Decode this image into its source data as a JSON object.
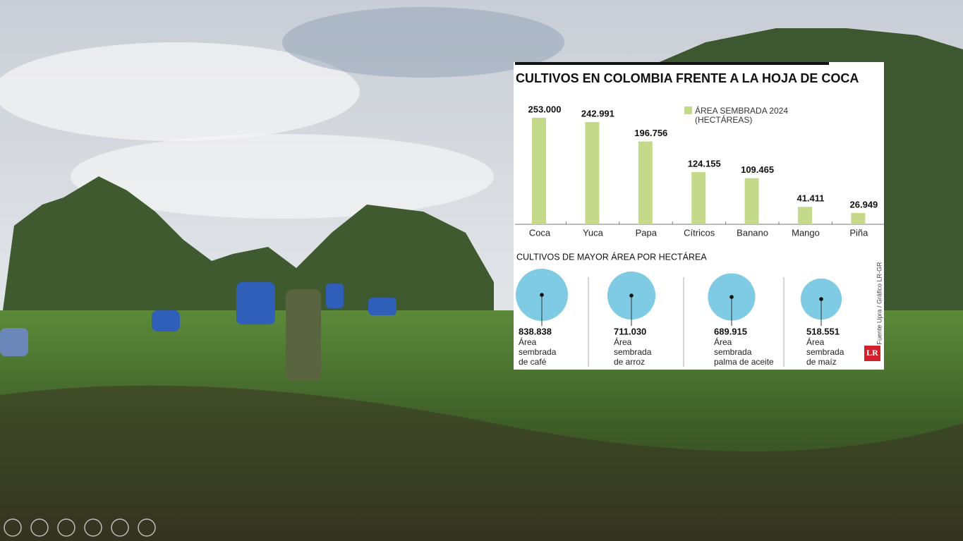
{
  "infographic": {
    "title": "CULTIVOS EN COLOMBIA FRENTE A LA HOJA DE COCA",
    "legend": [
      "ÁREA SEMBRADA 2024",
      "(HECTÁREAS)"
    ],
    "bars": {
      "categories": [
        "Coca",
        "Yuca",
        "Papa",
        "Cítricos",
        "Banano",
        "Mango",
        "Piña"
      ],
      "values": [
        253000,
        242991,
        196756,
        124155,
        109465,
        41411,
        26949
      ],
      "value_labels": [
        "253.000",
        "242.991",
        "196.756",
        "124.155",
        "109.465",
        "41.411",
        "26.949"
      ],
      "color": "#c5d98a"
    },
    "section_title": "CULTIVOS DE MAYOR ÁREA POR HECTÁREA",
    "bubbles": {
      "values": [
        838838,
        711030,
        689915,
        518551
      ],
      "value_labels": [
        "838.838",
        "711.030",
        "689.915",
        "518.551"
      ],
      "texts": [
        [
          "Área",
          "sembrada",
          "de café"
        ],
        [
          "Área",
          "sembrada",
          "de arroz"
        ],
        [
          "Área",
          "sembrada",
          "palma de aceite"
        ],
        [
          "Área",
          "sembrada",
          "de maíz"
        ]
      ],
      "color": "#7ecbe3"
    },
    "source": "Fuente Upra / Gráfico LR-GR",
    "logo": "LR"
  }
}
